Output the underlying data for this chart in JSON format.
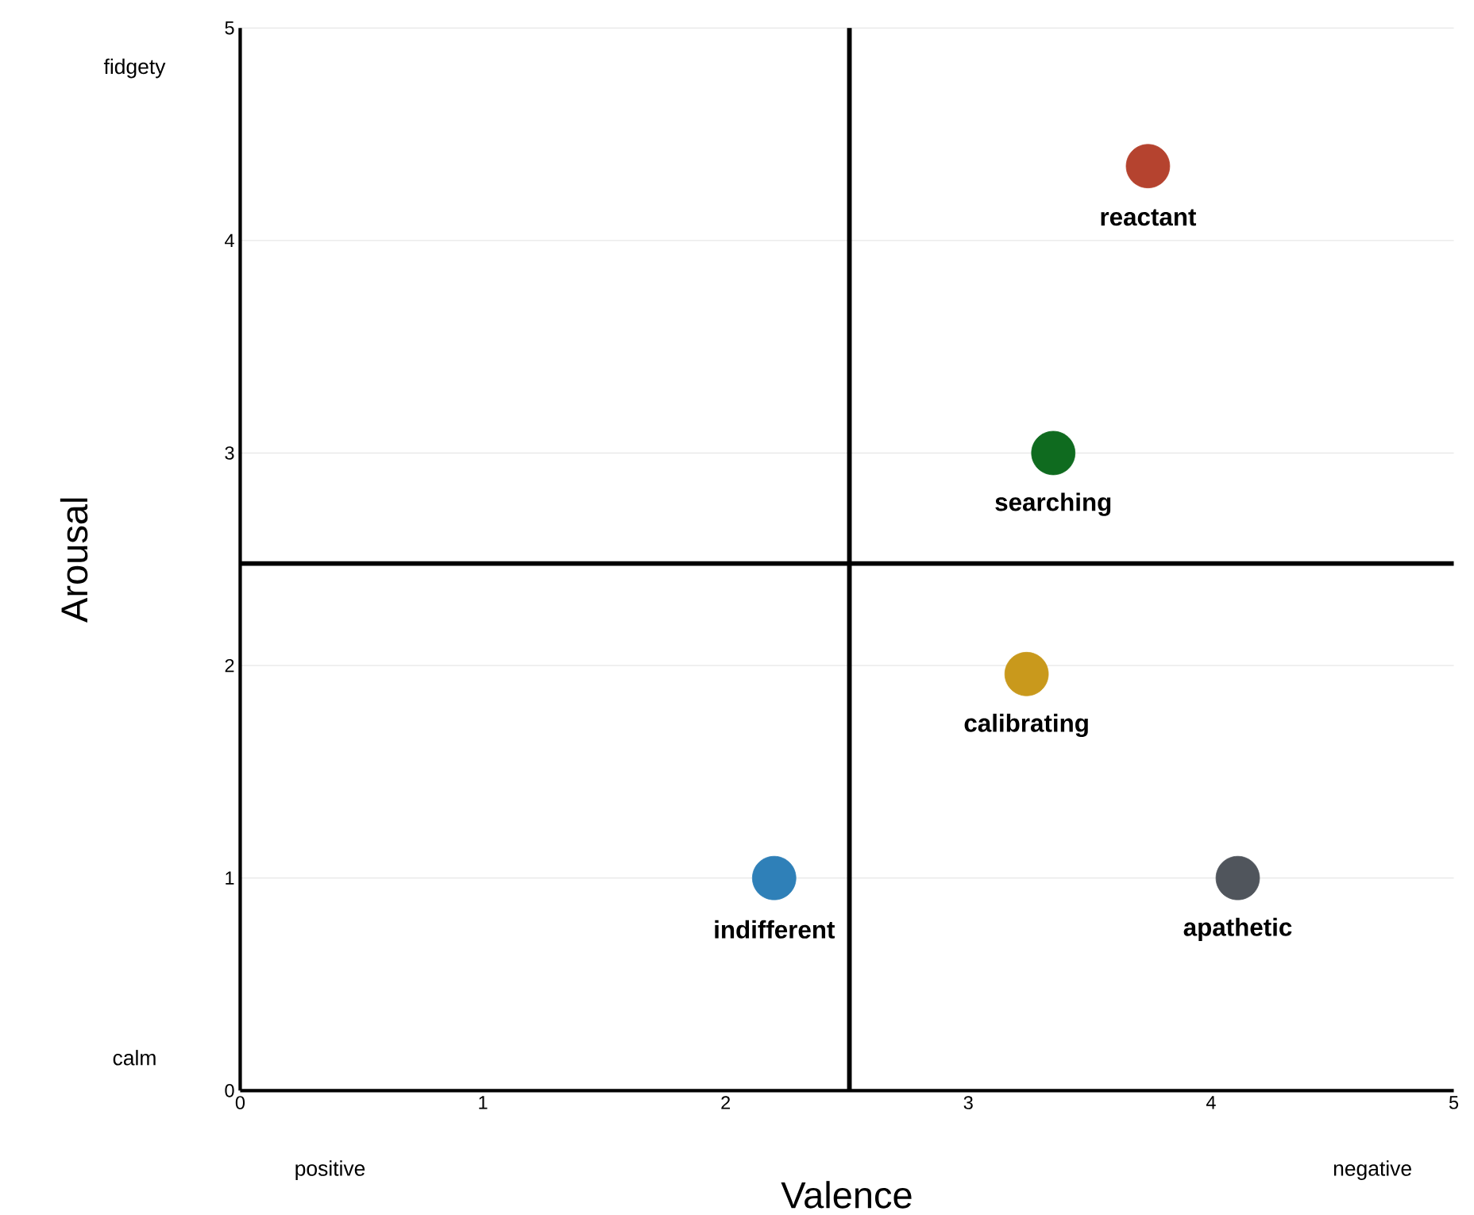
{
  "chart_data": {
    "type": "scatter",
    "xlabel": "Valence",
    "ylabel": "Arousal",
    "xlim": [
      0,
      5
    ],
    "ylim": [
      0,
      5
    ],
    "xticks": [
      0,
      1,
      2,
      3,
      4,
      5
    ],
    "yticks": [
      0,
      1,
      2,
      3,
      4,
      5
    ],
    "grid": "y",
    "series": [
      {
        "name": "reactant",
        "color": "#b5432f",
        "x": [
          3.74
        ],
        "values": [
          4.35
        ]
      },
      {
        "name": "searching",
        "color": "#0f6b1f",
        "x": [
          3.35
        ],
        "values": [
          3.0
        ]
      },
      {
        "name": "calibrating",
        "color": "#c9991c",
        "x": [
          3.24
        ],
        "values": [
          1.96
        ]
      },
      {
        "name": "indifferent",
        "color": "#2f80b8",
        "x": [
          2.2
        ],
        "values": [
          1.0
        ]
      },
      {
        "name": "apathetic",
        "color": "#50555c",
        "x": [
          4.11
        ],
        "values": [
          1.0
        ]
      }
    ],
    "ref_lines": [
      {
        "axis": "x",
        "value": 2.51,
        "color": "#000000"
      },
      {
        "axis": "y",
        "value": 2.48,
        "color": "#000000"
      }
    ],
    "annotations": [
      "fidgety",
      "calm",
      "positive",
      "negative"
    ]
  }
}
